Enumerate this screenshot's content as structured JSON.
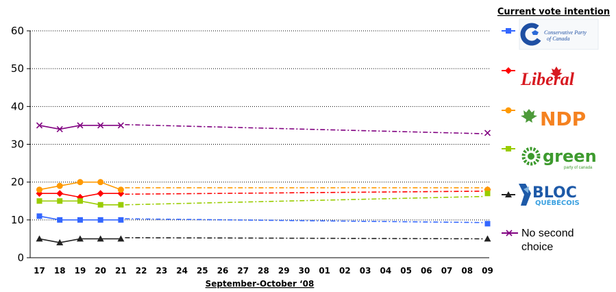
{
  "chart_data": {
    "type": "line",
    "title": "",
    "xlabel": "September-October ‘08",
    "ylabel": "",
    "ylim": [
      0,
      60
    ],
    "yticks": [
      "0",
      "10",
      "20",
      "30",
      "40",
      "50",
      "60"
    ],
    "grid": true,
    "legend_title": "Current vote intention",
    "legend_position": "right",
    "categories": [
      "17",
      "18",
      "19",
      "20",
      "21",
      "22",
      "23",
      "24",
      "25",
      "26",
      "27",
      "28",
      "29",
      "30",
      "01",
      "02",
      "03",
      "04",
      "05",
      "06",
      "07",
      "08",
      "09"
    ],
    "series": [
      {
        "name": "Conservative Party of Canada",
        "legend_kind": "logo",
        "color": "#3366ff",
        "marker": "square",
        "values": [
          11,
          10,
          10,
          10,
          10,
          null,
          null,
          null,
          null,
          null,
          null,
          null,
          null,
          null,
          null,
          null,
          null,
          null,
          null,
          null,
          null,
          null,
          9
        ],
        "trend_start": 10.3,
        "trend_end": 9.3
      },
      {
        "name": "Liberal",
        "legend_kind": "logo",
        "color": "#ff0000",
        "marker": "diamond",
        "values": [
          17,
          17,
          16,
          17,
          17,
          null,
          null,
          null,
          null,
          null,
          null,
          null,
          null,
          null,
          null,
          null,
          null,
          null,
          null,
          null,
          null,
          null,
          18
        ],
        "trend_start": 16.8,
        "trend_end": 17.6
      },
      {
        "name": "NDP",
        "legend_kind": "logo",
        "color": "#ff9900",
        "marker": "circle",
        "values": [
          18,
          19,
          20,
          20,
          18,
          null,
          null,
          null,
          null,
          null,
          null,
          null,
          null,
          null,
          null,
          null,
          null,
          null,
          null,
          null,
          null,
          null,
          18
        ],
        "trend_start": 18.5,
        "trend_end": 18.5
      },
      {
        "name": "green",
        "legend_kind": "logo",
        "color": "#99cc00",
        "marker": "square",
        "values": [
          15,
          15,
          15,
          14,
          14,
          null,
          null,
          null,
          null,
          null,
          null,
          null,
          null,
          null,
          null,
          null,
          null,
          null,
          null,
          null,
          null,
          null,
          17
        ],
        "trend_start": 14,
        "trend_end": 16.2
      },
      {
        "name": "BLOC QUÉBÉCOIS",
        "legend_kind": "logo",
        "color": "#222222",
        "marker": "triangle",
        "values": [
          5,
          4,
          5,
          5,
          5,
          null,
          null,
          null,
          null,
          null,
          null,
          null,
          null,
          null,
          null,
          null,
          null,
          null,
          null,
          null,
          null,
          null,
          5
        ],
        "trend_start": 5.3,
        "trend_end": 5
      },
      {
        "name": "No second choice",
        "legend_kind": "text",
        "color": "#800080",
        "marker": "x",
        "values": [
          35,
          34,
          35,
          35,
          35,
          null,
          null,
          null,
          null,
          null,
          null,
          null,
          null,
          null,
          null,
          null,
          null,
          null,
          null,
          null,
          null,
          null,
          33
        ],
        "trend_start": 35.2,
        "trend_end": 32.8
      }
    ]
  },
  "legend_logos": {
    "conservative_line1": "Conservative Party",
    "conservative_line2": "of Canada",
    "liberal": "Liberal",
    "ndp": "NDP",
    "green": "green",
    "green_sub": "party of canada",
    "bloc_line1": "BLOC",
    "bloc_line2": "QUÉBÉCOIS",
    "no_second_line1": "No second",
    "no_second_line2": "choice"
  }
}
